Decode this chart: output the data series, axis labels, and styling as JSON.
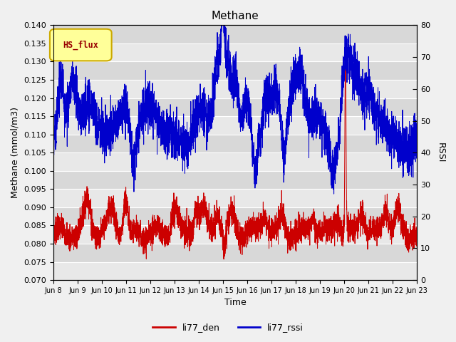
{
  "title": "Methane",
  "ylabel_left": "Methane (mmol/m3)",
  "ylabel_right": "RSSI",
  "xlabel": "Time",
  "ylim_left": [
    0.07,
    0.14
  ],
  "ylim_right": [
    0,
    80
  ],
  "xtick_labels": [
    "Jun 8",
    "Jun 9",
    "Jun 10",
    "Jun 11",
    "Jun 12",
    "Jun 13",
    "Jun 14",
    "Jun 15",
    "Jun 16",
    "Jun 17",
    "Jun 18",
    "Jun 19",
    "Jun 20",
    "Jun 21",
    "Jun 22",
    "Jun 23"
  ],
  "legend_labels": [
    "li77_den",
    "li77_rssi"
  ],
  "line_colors": [
    "#cc0000",
    "#0000cc"
  ],
  "hs_flux_label": "HS_flux",
  "hs_flux_bg": "#ffff99",
  "hs_flux_border": "#ccaa00",
  "hs_flux_color": "#990000",
  "plot_bg": "#e8e8e8",
  "band_light": "#e8e8e8",
  "band_dark": "#d8d8d8",
  "fig_bg": "#f0f0f0",
  "figsize": [
    6.4,
    4.8
  ],
  "dpi": 100
}
